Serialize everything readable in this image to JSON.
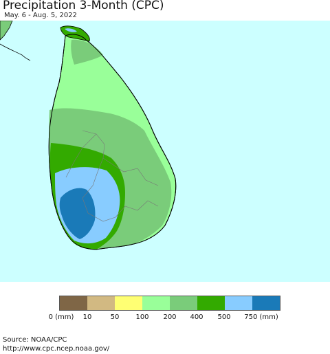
{
  "header": {
    "title": "Precipitation 3-Month (CPC)",
    "subtitle": "May. 6 - Aug. 5, 2022"
  },
  "colors": {
    "ocean": "#ccffff",
    "land": "#99ff99",
    "zones": [
      "#7acc7a",
      "#33aa00",
      "#88ccff",
      "#1a7ab8"
    ]
  },
  "legend": {
    "swatches": [
      "#7f6646",
      "#d2b982",
      "#ffff73",
      "#99ff99",
      "#7acc7a",
      "#33aa00",
      "#88ccff",
      "#1a7ab8"
    ],
    "labels": [
      "0 (mm)",
      "10",
      "50",
      "100",
      "200",
      "400",
      "500",
      "750 (mm)"
    ]
  },
  "footer": {
    "source": "Source: NOAA/CPC",
    "url": "http://www.cpc.ncep.noaa.gov/"
  }
}
